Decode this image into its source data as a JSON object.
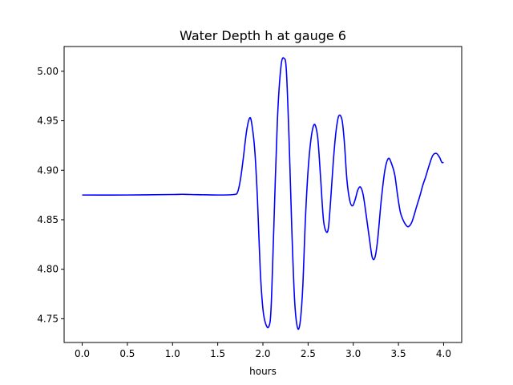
{
  "chart_data": {
    "type": "line",
    "title": "Water Depth h at gauge 6",
    "xlabel": "hours",
    "ylabel": "",
    "xlim": [
      -0.2,
      4.2
    ],
    "ylim": [
      4.726,
      5.025
    ],
    "xticks": [
      0.0,
      0.5,
      1.0,
      1.5,
      2.0,
      2.5,
      3.0,
      3.5,
      4.0
    ],
    "xtick_labels": [
      "0.0",
      "0.5",
      "1.0",
      "1.5",
      "2.0",
      "2.5",
      "3.0",
      "3.5",
      "4.0"
    ],
    "yticks": [
      4.75,
      4.8,
      4.85,
      4.9,
      4.95,
      5.0
    ],
    "ytick_labels": [
      "4.75",
      "4.80",
      "4.85",
      "4.90",
      "4.95",
      "5.00"
    ],
    "grid": false,
    "series": [
      {
        "color": "#0000ff",
        "x": [
          0.0,
          0.5,
          1.0,
          1.1,
          1.2,
          1.5,
          1.68,
          1.72,
          1.75,
          1.78,
          1.82,
          1.855,
          1.88,
          1.91,
          1.94,
          1.97,
          2.0,
          2.03,
          2.065,
          2.09,
          2.12,
          2.16,
          2.2,
          2.235,
          2.26,
          2.29,
          2.32,
          2.35,
          2.38,
          2.41,
          2.44,
          2.47,
          2.5,
          2.53,
          2.56,
          2.585,
          2.61,
          2.64,
          2.67,
          2.7,
          2.725,
          2.75,
          2.78,
          2.81,
          2.84,
          2.875,
          2.9,
          2.93,
          2.96,
          2.99,
          3.02,
          3.05,
          3.08,
          3.11,
          3.15,
          3.18,
          3.21,
          3.24,
          3.27,
          3.31,
          3.35,
          3.39,
          3.43,
          3.46,
          3.49,
          3.52,
          3.55,
          3.58,
          3.61,
          3.65,
          3.7,
          3.74,
          3.77,
          3.8,
          3.84,
          3.88,
          3.92,
          3.955,
          3.98,
          4.0
        ],
        "y": [
          4.875,
          4.875,
          4.8755,
          4.8757,
          4.8755,
          4.875,
          4.8755,
          4.878,
          4.89,
          4.91,
          4.94,
          4.953,
          4.945,
          4.92,
          4.87,
          4.8,
          4.76,
          4.745,
          4.742,
          4.76,
          4.84,
          4.95,
          5.005,
          5.013,
          5.0,
          4.93,
          4.84,
          4.77,
          4.742,
          4.745,
          4.78,
          4.85,
          4.9,
          4.93,
          4.945,
          4.944,
          4.93,
          4.89,
          4.85,
          4.838,
          4.842,
          4.87,
          4.91,
          4.94,
          4.955,
          4.951,
          4.93,
          4.89,
          4.87,
          4.864,
          4.87,
          4.88,
          4.883,
          4.875,
          4.85,
          4.83,
          4.812,
          4.812,
          4.83,
          4.87,
          4.9,
          4.912,
          4.905,
          4.895,
          4.875,
          4.858,
          4.85,
          4.845,
          4.843,
          4.848,
          4.863,
          4.875,
          4.885,
          4.893,
          4.905,
          4.915,
          4.917,
          4.913,
          4.908,
          4.908
        ]
      }
    ]
  }
}
